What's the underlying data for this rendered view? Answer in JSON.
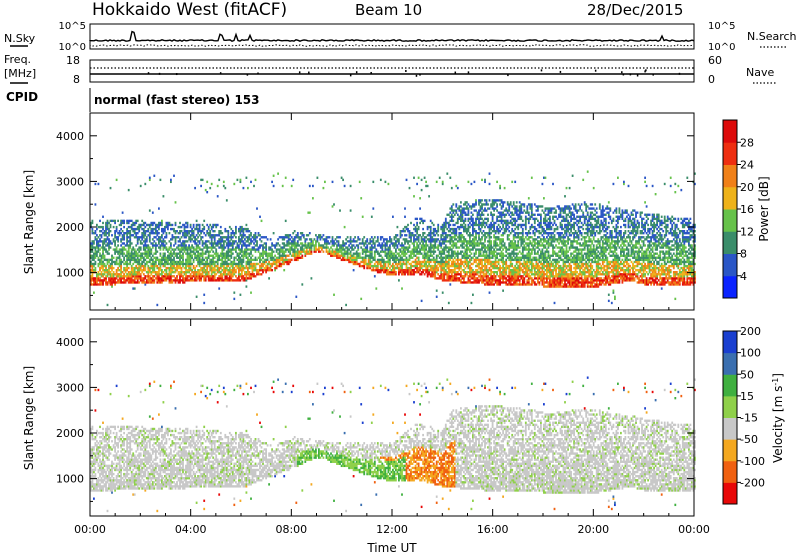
{
  "header": {
    "station": "Hokkaido West (fitACF)",
    "beam": "Beam 10",
    "date": "28/Dec/2015"
  },
  "noise_panel": {
    "left_label": "N.Sky",
    "right_label": "N.Search",
    "left_ticks": [
      "10^5",
      "10^0"
    ],
    "right_ticks": [
      "10^5",
      "10^0"
    ]
  },
  "freq_panel": {
    "left_label_lines": [
      "Freq.",
      "[MHz]"
    ],
    "right_label": "Nave",
    "left_ticks": [
      "18",
      "8"
    ],
    "right_ticks": [
      "60",
      "0"
    ]
  },
  "cpid": {
    "label": "CPID",
    "mode": "normal (fast stereo) 153"
  },
  "chart_data": [
    {
      "type": "heatmap",
      "name": "power",
      "xlabel": "",
      "ylabel": "Slant Range [km]",
      "x_ticks": [
        "00:00",
        "04:00",
        "08:00",
        "12:00",
        "16:00",
        "20:00",
        "00:00"
      ],
      "y_ticks": [
        "1000",
        "2000",
        "3000",
        "4000"
      ],
      "xlim_hours": [
        0,
        24
      ],
      "ylim_km": [
        180,
        4500
      ],
      "colorbar": {
        "label": "Power [dB]",
        "ticks": [
          "4",
          "8",
          "12",
          "16",
          "20",
          "24",
          "28"
        ],
        "range": [
          0,
          32
        ],
        "colors": [
          "#0a23ff",
          "#2a56c6",
          "#3a8d6a",
          "#66c24a",
          "#eeb21a",
          "#f08018",
          "#ee2e10",
          "#dd0a0a"
        ]
      }
    },
    {
      "type": "heatmap",
      "name": "velocity",
      "xlabel": "Time UT",
      "ylabel": "Slant Range [km]",
      "x_ticks": [
        "00:00",
        "04:00",
        "08:00",
        "12:00",
        "16:00",
        "20:00",
        "00:00"
      ],
      "y_ticks": [
        "1000",
        "2000",
        "3000",
        "4000"
      ],
      "xlim_hours": [
        0,
        24
      ],
      "ylim_km": [
        180,
        4500
      ],
      "colorbar": {
        "label": "Velocity [m s",
        "label_sup": "-1",
        "label_end": "]",
        "ticks": [
          "-200",
          "-100",
          "-50",
          "-15",
          "15",
          "50",
          "100",
          "200"
        ],
        "colors": [
          "#e80808",
          "#f06010",
          "#f4a820",
          "#c8c8c8",
          "#8fd04a",
          "#3fb040",
          "#3a6fb0",
          "#1a3fd0"
        ]
      }
    }
  ]
}
